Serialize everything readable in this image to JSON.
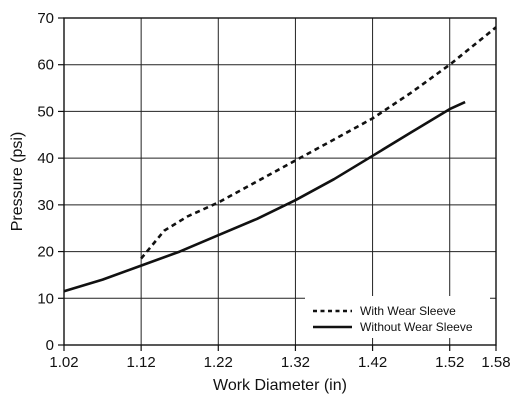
{
  "chart_data": {
    "type": "line",
    "title": "",
    "xlabel": "Work Diameter (in)",
    "ylabel": "Pressure (psi)",
    "xlim": [
      1.02,
      1.58
    ],
    "ylim": [
      0,
      70
    ],
    "x_ticks": [
      "1.02",
      "1.12",
      "1.22",
      "1.32",
      "1.42",
      "1.52",
      "1.58"
    ],
    "x_tick_values": [
      1.02,
      1.12,
      1.22,
      1.32,
      1.42,
      1.52,
      1.58
    ],
    "y_ticks": [
      "0",
      "10",
      "20",
      "30",
      "40",
      "50",
      "60",
      "70"
    ],
    "y_tick_values": [
      0,
      10,
      20,
      30,
      40,
      50,
      60,
      70
    ],
    "grid": true,
    "legend_position": "bottom-right",
    "series": [
      {
        "name": "With Wear Sleeve",
        "style": "dashed",
        "color": "#111111",
        "x": [
          1.12,
          1.15,
          1.18,
          1.22,
          1.27,
          1.32,
          1.37,
          1.42,
          1.47,
          1.52,
          1.58
        ],
        "y": [
          18.5,
          24.5,
          27.5,
          30.5,
          35.0,
          39.5,
          44.0,
          48.5,
          54.0,
          60.0,
          68.0
        ]
      },
      {
        "name": "Without Wear Sleeve",
        "style": "solid",
        "color": "#111111",
        "x": [
          1.02,
          1.07,
          1.12,
          1.17,
          1.22,
          1.27,
          1.32,
          1.37,
          1.42,
          1.47,
          1.52,
          1.54
        ],
        "y": [
          11.5,
          14.0,
          17.0,
          20.0,
          23.5,
          27.0,
          31.0,
          35.5,
          40.5,
          45.5,
          50.5,
          52.0
        ]
      }
    ]
  }
}
